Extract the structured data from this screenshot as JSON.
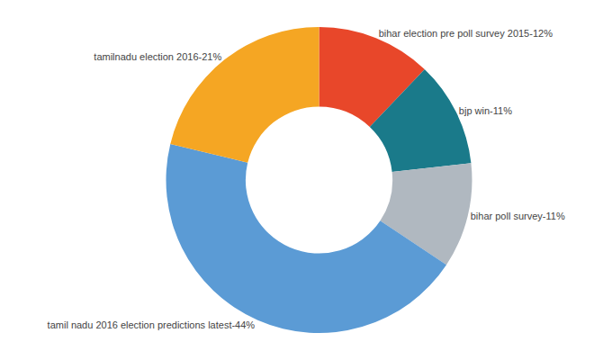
{
  "chart_data": {
    "type": "donut",
    "categories": [
      "bihar election pre poll survey 2015-12%",
      "bjp win-11%",
      "bihar poll survey-11%",
      "tamil nadu 2016 election predictions latest-44%",
      "tamilnadu election 2016-21%"
    ],
    "values": [
      12,
      11,
      11,
      44,
      21
    ],
    "colors": [
      "#E8472A",
      "#1A7A8A",
      "#B0B8C0",
      "#5B9BD5",
      "#F5A623"
    ],
    "data_labels": true
  }
}
